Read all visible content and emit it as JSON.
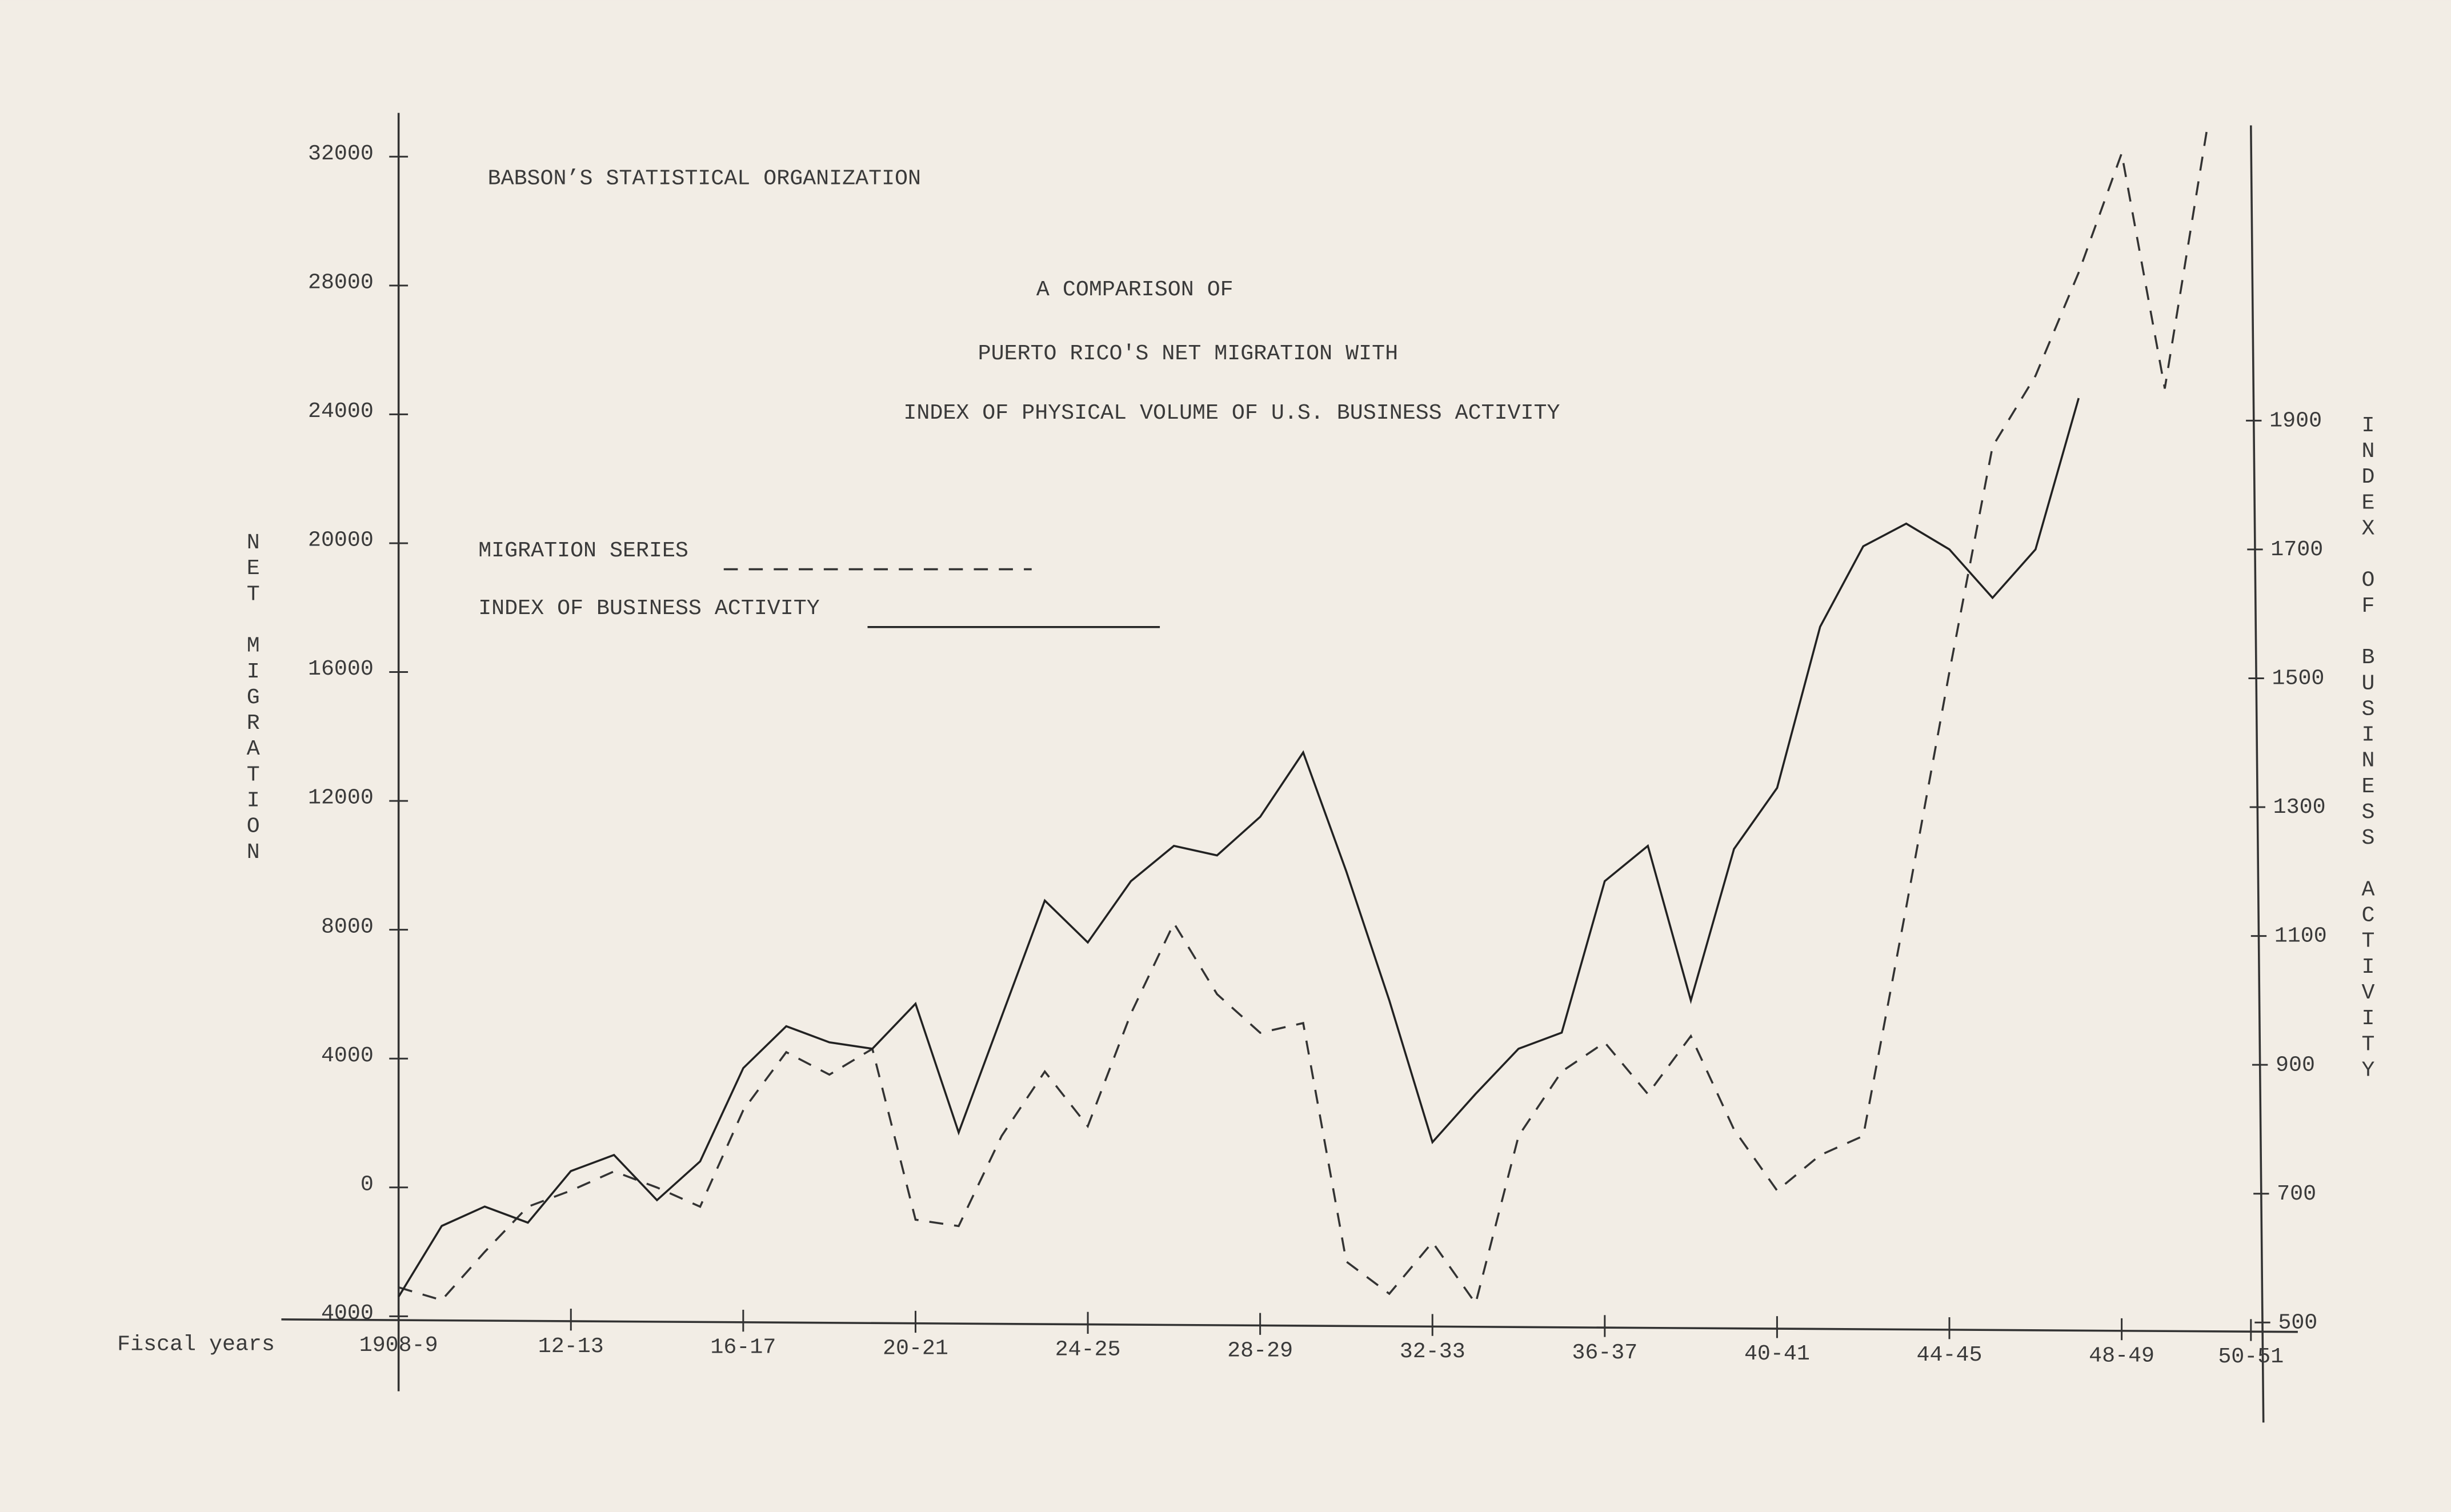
{
  "chart_data": {
    "type": "line",
    "header": "BABSON’S STATISTICAL ORGANIZATION",
    "title_lines": [
      "A COMPARISON OF",
      "PUERTO RICO'S NET MIGRATION WITH",
      "INDEX OF PHYSICAL VOLUME OF U.S. BUSINESS ACTIVITY"
    ],
    "xlabel": "Fiscal years",
    "ylabel": "NET MIGRATION",
    "y2label": "INDEX OF BUSINESS ACTIVITY",
    "xlim": [
      1908,
      1951
    ],
    "xticks": [
      {
        "value": 1908,
        "label": "1908-9"
      },
      {
        "value": 1912,
        "label": "12-13"
      },
      {
        "value": 1916,
        "label": "16-17"
      },
      {
        "value": 1920,
        "label": "20-21"
      },
      {
        "value": 1924,
        "label": "24-25"
      },
      {
        "value": 1928,
        "label": "28-29"
      },
      {
        "value": 1932,
        "label": "32-33"
      },
      {
        "value": 1936,
        "label": "36-37"
      },
      {
        "value": 1940,
        "label": "40-41"
      },
      {
        "value": 1944,
        "label": "44-45"
      },
      {
        "value": 1948,
        "label": "48-49"
      },
      {
        "value": 1951,
        "label": "50-51"
      }
    ],
    "ylim": [
      -4000,
      32000
    ],
    "yticks": [
      {
        "value": -4000,
        "label": "4000"
      },
      0,
      4000,
      8000,
      12000,
      16000,
      20000,
      24000,
      28000,
      32000
    ],
    "y2lim": [
      500,
      2300
    ],
    "y2ticks": [
      500,
      700,
      900,
      1100,
      1300,
      1500,
      1700,
      1900
    ],
    "series": [
      {
        "name": "MIGRATION SERIES",
        "color": "#333333",
        "style": "dashed",
        "axis": "y",
        "x": [
          1908,
          1909,
          1910,
          1911,
          1912,
          1913,
          1914,
          1915,
          1916,
          1917,
          1918,
          1919,
          1920,
          1921,
          1922,
          1923,
          1924,
          1925,
          1926,
          1927,
          1928,
          1929,
          1930,
          1931,
          1932,
          1933,
          1934,
          1935,
          1936,
          1937,
          1938,
          1939,
          1940,
          1941,
          1942,
          1943,
          1944,
          1945,
          1946,
          1947,
          1948,
          1949,
          1950
        ],
        "values": [
          -3100,
          -3500,
          -2000,
          -600,
          -100,
          500,
          0,
          -600,
          2400,
          4200,
          3500,
          4300,
          -1000,
          -1200,
          1600,
          3600,
          1900,
          5400,
          8200,
          6000,
          4800,
          5100,
          -2300,
          -3300,
          -1700,
          -3600,
          1600,
          3600,
          4500,
          2900,
          4700,
          1800,
          -100,
          1000,
          1600,
          8700,
          16000,
          23000,
          25200,
          28400,
          32100,
          24800,
          33000
        ]
      },
      {
        "name": "INDEX OF BUSINESS ACTIVITY",
        "color": "#222222",
        "style": "solid",
        "axis": "y2",
        "x": [
          1908,
          1909,
          1910,
          1911,
          1912,
          1913,
          1914,
          1915,
          1916,
          1917,
          1918,
          1919,
          1920,
          1921,
          1922,
          1923,
          1924,
          1925,
          1926,
          1927,
          1928,
          1929,
          1930,
          1931,
          1932,
          1933,
          1934,
          1935,
          1936,
          1937,
          1938,
          1939,
          1940,
          1941,
          1942,
          1943,
          1944,
          1945,
          1946,
          1947
        ],
        "values": [
          540,
          650,
          680,
          655,
          735,
          760,
          690,
          750,
          895,
          960,
          935,
          925,
          995,
          795,
          975,
          1155,
          1090,
          1185,
          1240,
          1225,
          1285,
          1385,
          1200,
          1000,
          780,
          855,
          925,
          950,
          1185,
          1240,
          1000,
          1235,
          1330,
          1580,
          1705,
          1740,
          1700,
          1625,
          1700,
          1935
        ]
      }
    ]
  }
}
